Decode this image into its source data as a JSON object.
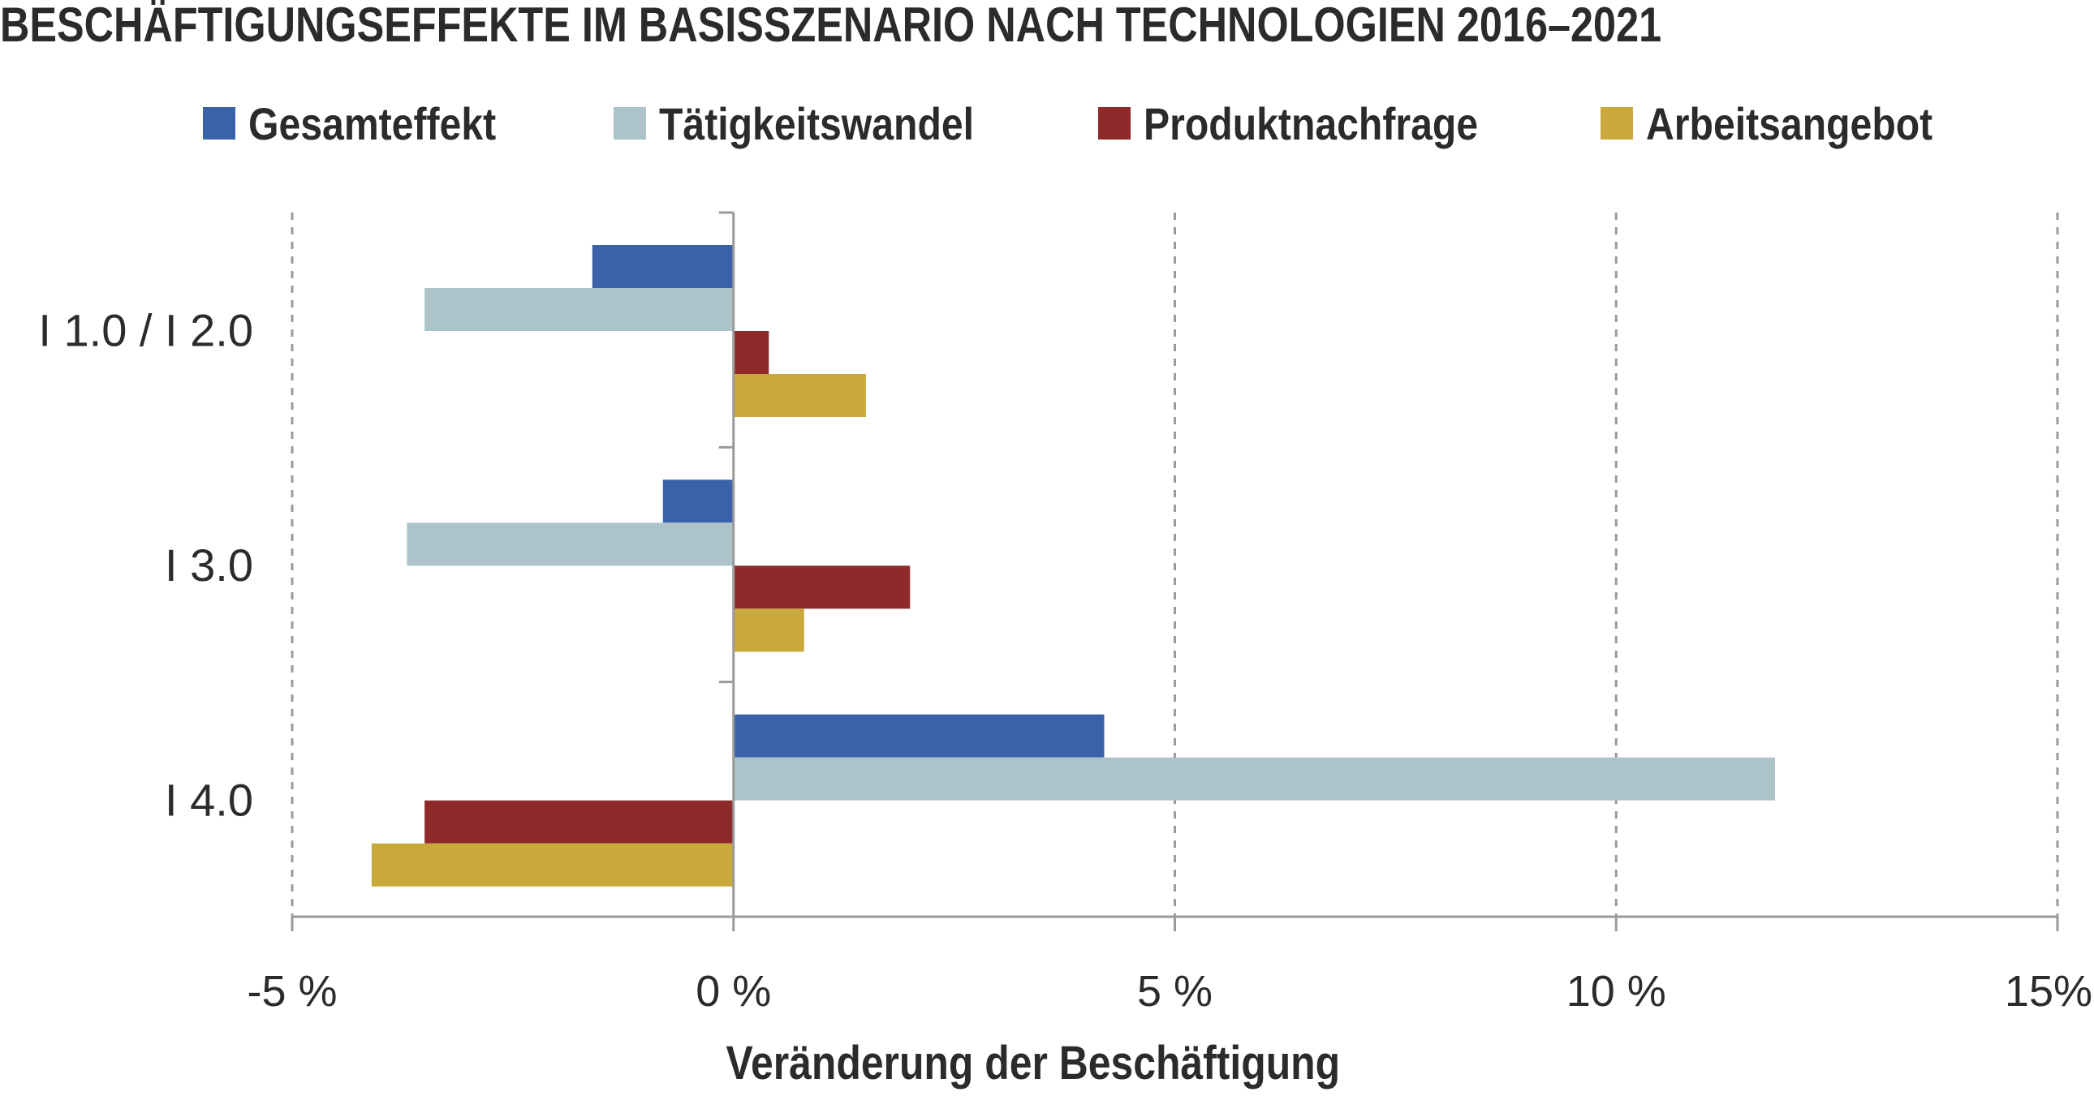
{
  "chart_data": {
    "type": "bar",
    "orientation": "horizontal",
    "title": "BESCHÄFTIGUNGSEFFEKTE IM BASISSZENARIO NACH TECHNOLOGIEN 2016–2021",
    "xlabel": "Veränderung der Beschäftigung",
    "ylabel": "",
    "categories": [
      "I 1.0 / I 2.0",
      "I 3.0",
      "I 4.0"
    ],
    "series": [
      {
        "name": "Gesamteffekt",
        "color": "#3a62a9",
        "values": [
          -1.6,
          -0.8,
          4.2
        ]
      },
      {
        "name": "Tätigkeitswandel",
        "color": "#acc4c9",
        "values": [
          -3.5,
          -3.7,
          11.8
        ]
      },
      {
        "name": "Produktnachfrage",
        "color": "#8e2b2a",
        "values": [
          0.4,
          2.0,
          -3.5
        ]
      },
      {
        "name": "Arbeitsangebot",
        "color": "#c9a93c",
        "values": [
          1.5,
          0.8,
          -4.1
        ]
      }
    ],
    "xlim": [
      -5,
      15
    ],
    "xticks": [
      -5,
      0,
      5,
      10,
      15
    ],
    "xtick_labels": [
      "-5 %",
      "0 %",
      "5 %",
      "10 %",
      "15%"
    ],
    "grid": "vertical dashed",
    "legend_position": "top"
  }
}
